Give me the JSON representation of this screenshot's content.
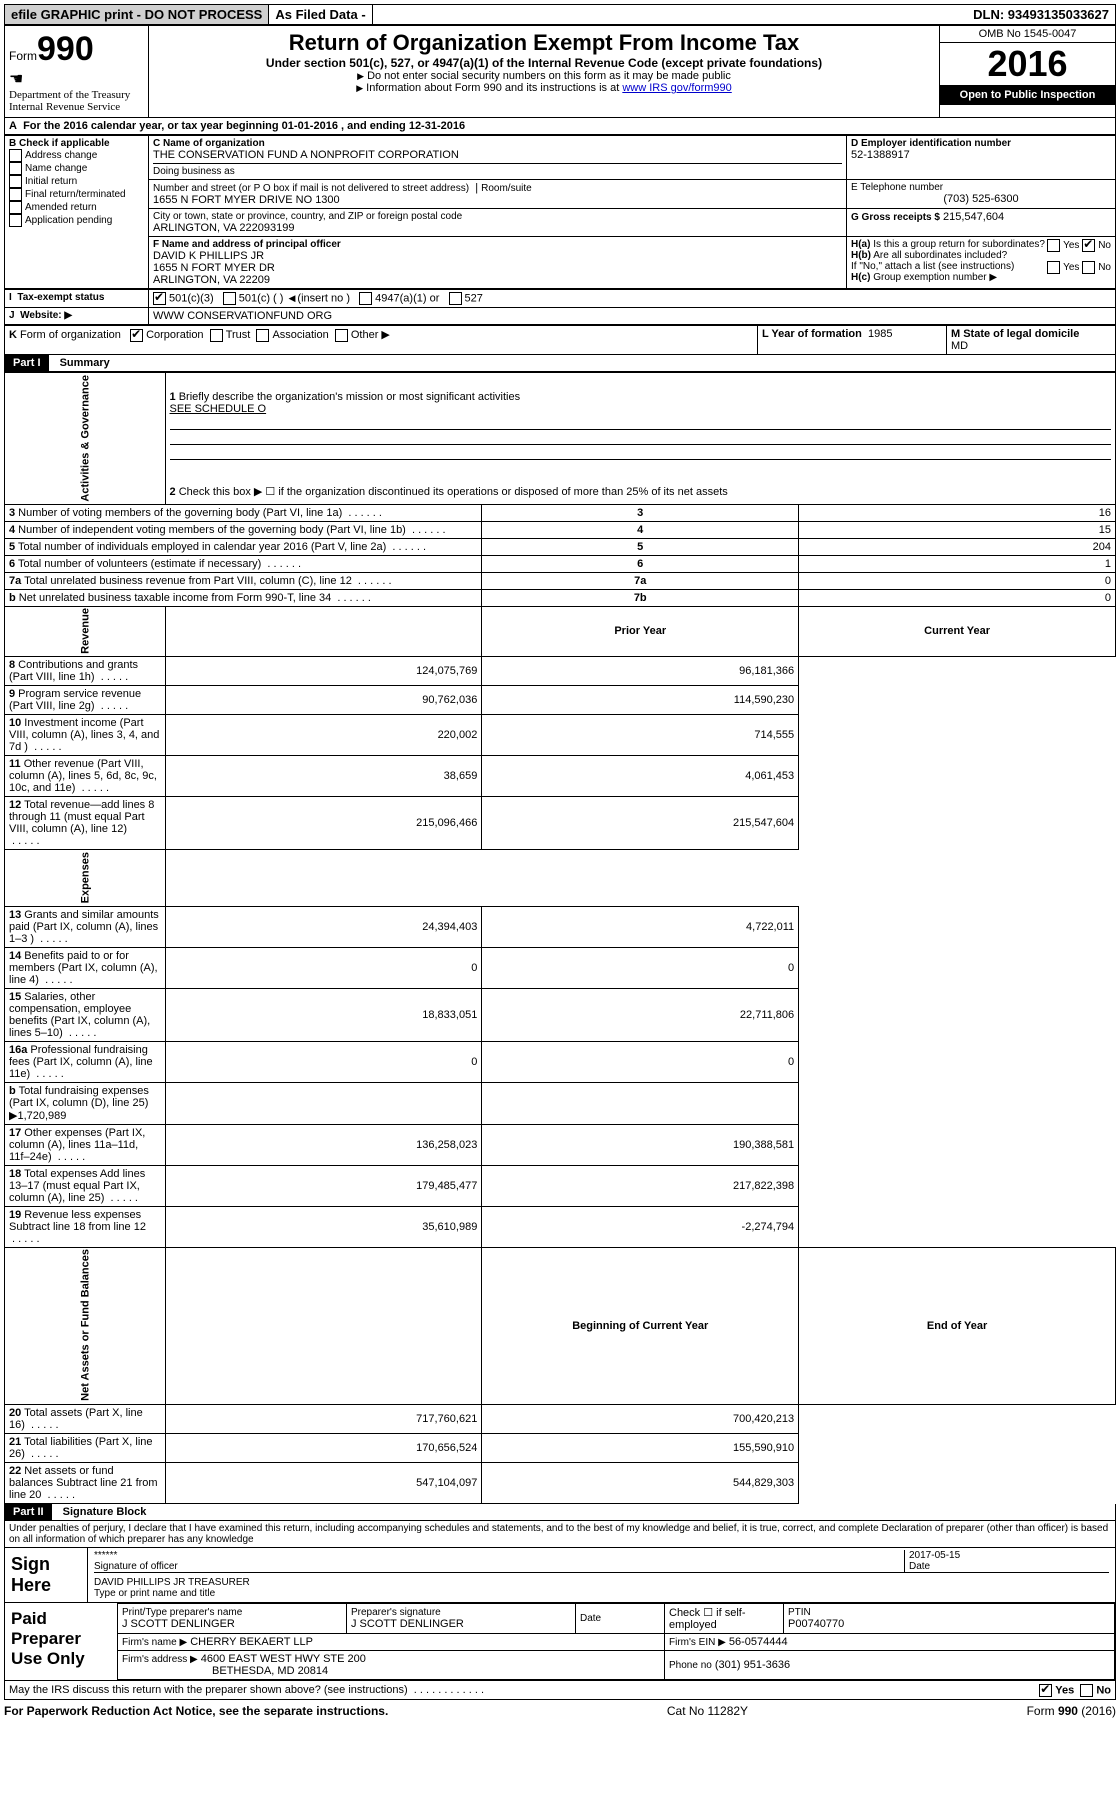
{
  "topbar": {
    "efile": "efile GRAPHIC print - DO NOT PROCESS",
    "asfiled": "As Filed Data -",
    "dln": "DLN: 93493135033627"
  },
  "header": {
    "form_label": "Form",
    "form_number": "990",
    "dept": "Department of the Treasury",
    "irs": "Internal Revenue Service",
    "title": "Return of Organization Exempt From Income Tax",
    "subtitle": "Under section 501(c), 527, or 4947(a)(1) of the Internal Revenue Code (except private foundations)",
    "note1": "Do not enter social security numbers on this form as it may be made public",
    "note2_pre": "Information about Form 990 and its instructions is at ",
    "note2_link": "www IRS gov/form990",
    "omb": "OMB No 1545-0047",
    "year": "2016",
    "open": "Open to Public Inspection"
  },
  "a_line": "For the 2016 calendar year, or tax year beginning 01-01-2016   , and ending 12-31-2016",
  "b": {
    "title": "B Check if applicable",
    "opts": [
      "Address change",
      "Name change",
      "Initial return",
      "Final return/terminated",
      "Amended return",
      "Application pending"
    ]
  },
  "c": {
    "label": "C Name of organization",
    "name": "THE CONSERVATION FUND A NONPROFIT CORPORATION",
    "dba_label": "Doing business as",
    "addr_label": "Number and street (or P O  box if mail is not delivered to street address)",
    "room_label": "Room/suite",
    "addr": "1655 N FORT MYER DRIVE NO 1300",
    "city_label": "City or town, state or province, country, and ZIP or foreign postal code",
    "city": "ARLINGTON, VA  222093199"
  },
  "d": {
    "label": "D Employer identification number",
    "val": "52-1388917"
  },
  "e": {
    "label": "E Telephone number",
    "val": "(703) 525-6300"
  },
  "g": {
    "label": "G Gross receipts $",
    "val": "215,547,604"
  },
  "f": {
    "label": "F  Name and address of principal officer",
    "name": "DAVID K PHILLIPS JR",
    "addr1": "1655 N FORT MYER DR",
    "addr2": "ARLINGTON, VA  22209"
  },
  "h": {
    "a": "Is this a group return for subordinates?",
    "b": "Are all subordinates included?",
    "note": "If \"No,\" attach a list  (see instructions)",
    "c": "Group exemption number ▶"
  },
  "i": {
    "label": "Tax-exempt status",
    "opts": [
      "501(c)(3)",
      "501(c) (   )",
      "(insert no )",
      "4947(a)(1) or",
      "527"
    ]
  },
  "j": {
    "label": "Website: ▶",
    "val": "WWW CONSERVATIONFUND ORG"
  },
  "k": {
    "label": "Form of organization",
    "opts": [
      "Corporation",
      "Trust",
      "Association",
      "Other ▶"
    ]
  },
  "l": {
    "label": "L Year of formation",
    "val": "1985"
  },
  "m": {
    "label": "M State of legal domicile",
    "val": "MD"
  },
  "part1": {
    "label": "Part I",
    "title": "Summary",
    "l1": "Briefly describe the organization's mission or most significant activities",
    "l1v": "SEE SCHEDULE O",
    "l2": "Check this box ▶ ☐  if the organization discontinued its operations or disposed of more than 25% of its net assets",
    "prior": "Prior Year",
    "curr": "Current Year",
    "beg": "Beginning of Current Year",
    "end": "End of Year"
  },
  "gov_rows": [
    {
      "n": "3",
      "d": "Number of voting members of the governing body (Part VI, line 1a)",
      "b": "3",
      "v": "16"
    },
    {
      "n": "4",
      "d": "Number of independent voting members of the governing body (Part VI, line 1b)",
      "b": "4",
      "v": "15"
    },
    {
      "n": "5",
      "d": "Total number of individuals employed in calendar year 2016 (Part V, line 2a)",
      "b": "5",
      "v": "204"
    },
    {
      "n": "6",
      "d": "Total number of volunteers (estimate if necessary)",
      "b": "6",
      "v": "1"
    },
    {
      "n": "7a",
      "d": "Total unrelated business revenue from Part VIII, column (C), line 12",
      "b": "7a",
      "v": "0"
    },
    {
      "n": "b",
      "d": "Net unrelated business taxable income from Form 990-T, line 34",
      "b": "7b",
      "v": "0"
    }
  ],
  "rev_rows": [
    {
      "n": "8",
      "d": "Contributions and grants (Part VIII, line 1h)",
      "p": "124,075,769",
      "c": "96,181,366"
    },
    {
      "n": "9",
      "d": "Program service revenue (Part VIII, line 2g)",
      "p": "90,762,036",
      "c": "114,590,230"
    },
    {
      "n": "10",
      "d": "Investment income (Part VIII, column (A), lines 3, 4, and 7d )",
      "p": "220,002",
      "c": "714,555"
    },
    {
      "n": "11",
      "d": "Other revenue (Part VIII, column (A), lines 5, 6d, 8c, 9c, 10c, and 11e)",
      "p": "38,659",
      "c": "4,061,453"
    },
    {
      "n": "12",
      "d": "Total revenue—add lines 8 through 11 (must equal Part VIII, column (A), line 12)",
      "p": "215,096,466",
      "c": "215,547,604"
    }
  ],
  "exp_rows": [
    {
      "n": "13",
      "d": "Grants and similar amounts paid (Part IX, column (A), lines 1–3 )",
      "p": "24,394,403",
      "c": "4,722,011"
    },
    {
      "n": "14",
      "d": "Benefits paid to or for members (Part IX, column (A), line 4)",
      "p": "0",
      "c": "0"
    },
    {
      "n": "15",
      "d": "Salaries, other compensation, employee benefits (Part IX, column (A), lines 5–10)",
      "p": "18,833,051",
      "c": "22,711,806"
    },
    {
      "n": "16a",
      "d": "Professional fundraising fees (Part IX, column (A), line 11e)",
      "p": "0",
      "c": "0"
    },
    {
      "n": "b",
      "d": "Total fundraising expenses (Part IX, column (D), line 25) ▶1,720,989",
      "p": "",
      "c": ""
    },
    {
      "n": "17",
      "d": "Other expenses (Part IX, column (A), lines 11a–11d, 11f–24e)",
      "p": "136,258,023",
      "c": "190,388,581"
    },
    {
      "n": "18",
      "d": "Total expenses  Add lines 13–17 (must equal Part IX, column (A), line 25)",
      "p": "179,485,477",
      "c": "217,822,398"
    },
    {
      "n": "19",
      "d": "Revenue less expenses  Subtract line 18 from line 12",
      "p": "35,610,989",
      "c": "-2,274,794"
    }
  ],
  "net_rows": [
    {
      "n": "20",
      "d": "Total assets (Part X, line 16)",
      "p": "717,760,621",
      "c": "700,420,213"
    },
    {
      "n": "21",
      "d": "Total liabilities (Part X, line 26)",
      "p": "170,656,524",
      "c": "155,590,910"
    },
    {
      "n": "22",
      "d": "Net assets or fund balances  Subtract line 21 from line 20",
      "p": "547,104,097",
      "c": "544,829,303"
    }
  ],
  "part2": {
    "label": "Part II",
    "title": "Signature Block",
    "decl": "Under penalties of perjury, I declare that I have examined this return, including accompanying schedules and statements, and to the best of my knowledge and belief, it is true, correct, and complete  Declaration of preparer (other than officer) is based on all information of which preparer has any knowledge"
  },
  "sign": {
    "here": "Sign Here",
    "stars": "******",
    "sig_label": "Signature of officer",
    "date": "2017-05-15",
    "date_label": "Date",
    "name": "DAVID PHILLIPS JR TREASURER",
    "name_label": "Type or print name and title"
  },
  "paid": {
    "label": "Paid Preparer Use Only",
    "prep_name_label": "Print/Type preparer's name",
    "prep_name": "J SCOTT DENLINGER",
    "sig_label": "Preparer's signature",
    "sig": "J SCOTT DENLINGER",
    "date_label": "Date",
    "check_label": "Check ☐ if self-employed",
    "ptin_label": "PTIN",
    "ptin": "P00740770",
    "firm_label": "Firm's name   ▶",
    "firm": "CHERRY BEKAERT LLP",
    "ein_label": "Firm's EIN ▶",
    "ein": "56-0574444",
    "addr_label": "Firm's address ▶",
    "addr": "4600 EAST WEST HWY STE 200",
    "addr2": "BETHESDA, MD  20814",
    "phone_label": "Phone no",
    "phone": "(301) 951-3636"
  },
  "discuss": "May the IRS discuss this return with the preparer shown above? (see instructions)",
  "footer": {
    "left": "For Paperwork Reduction Act Notice, see the separate instructions.",
    "mid": "Cat No  11282Y",
    "right": "Form 990 (2016)"
  },
  "vlabels": {
    "gov": "Activities & Governance",
    "rev": "Revenue",
    "exp": "Expenses",
    "net": "Net Assets or Fund Balances"
  }
}
